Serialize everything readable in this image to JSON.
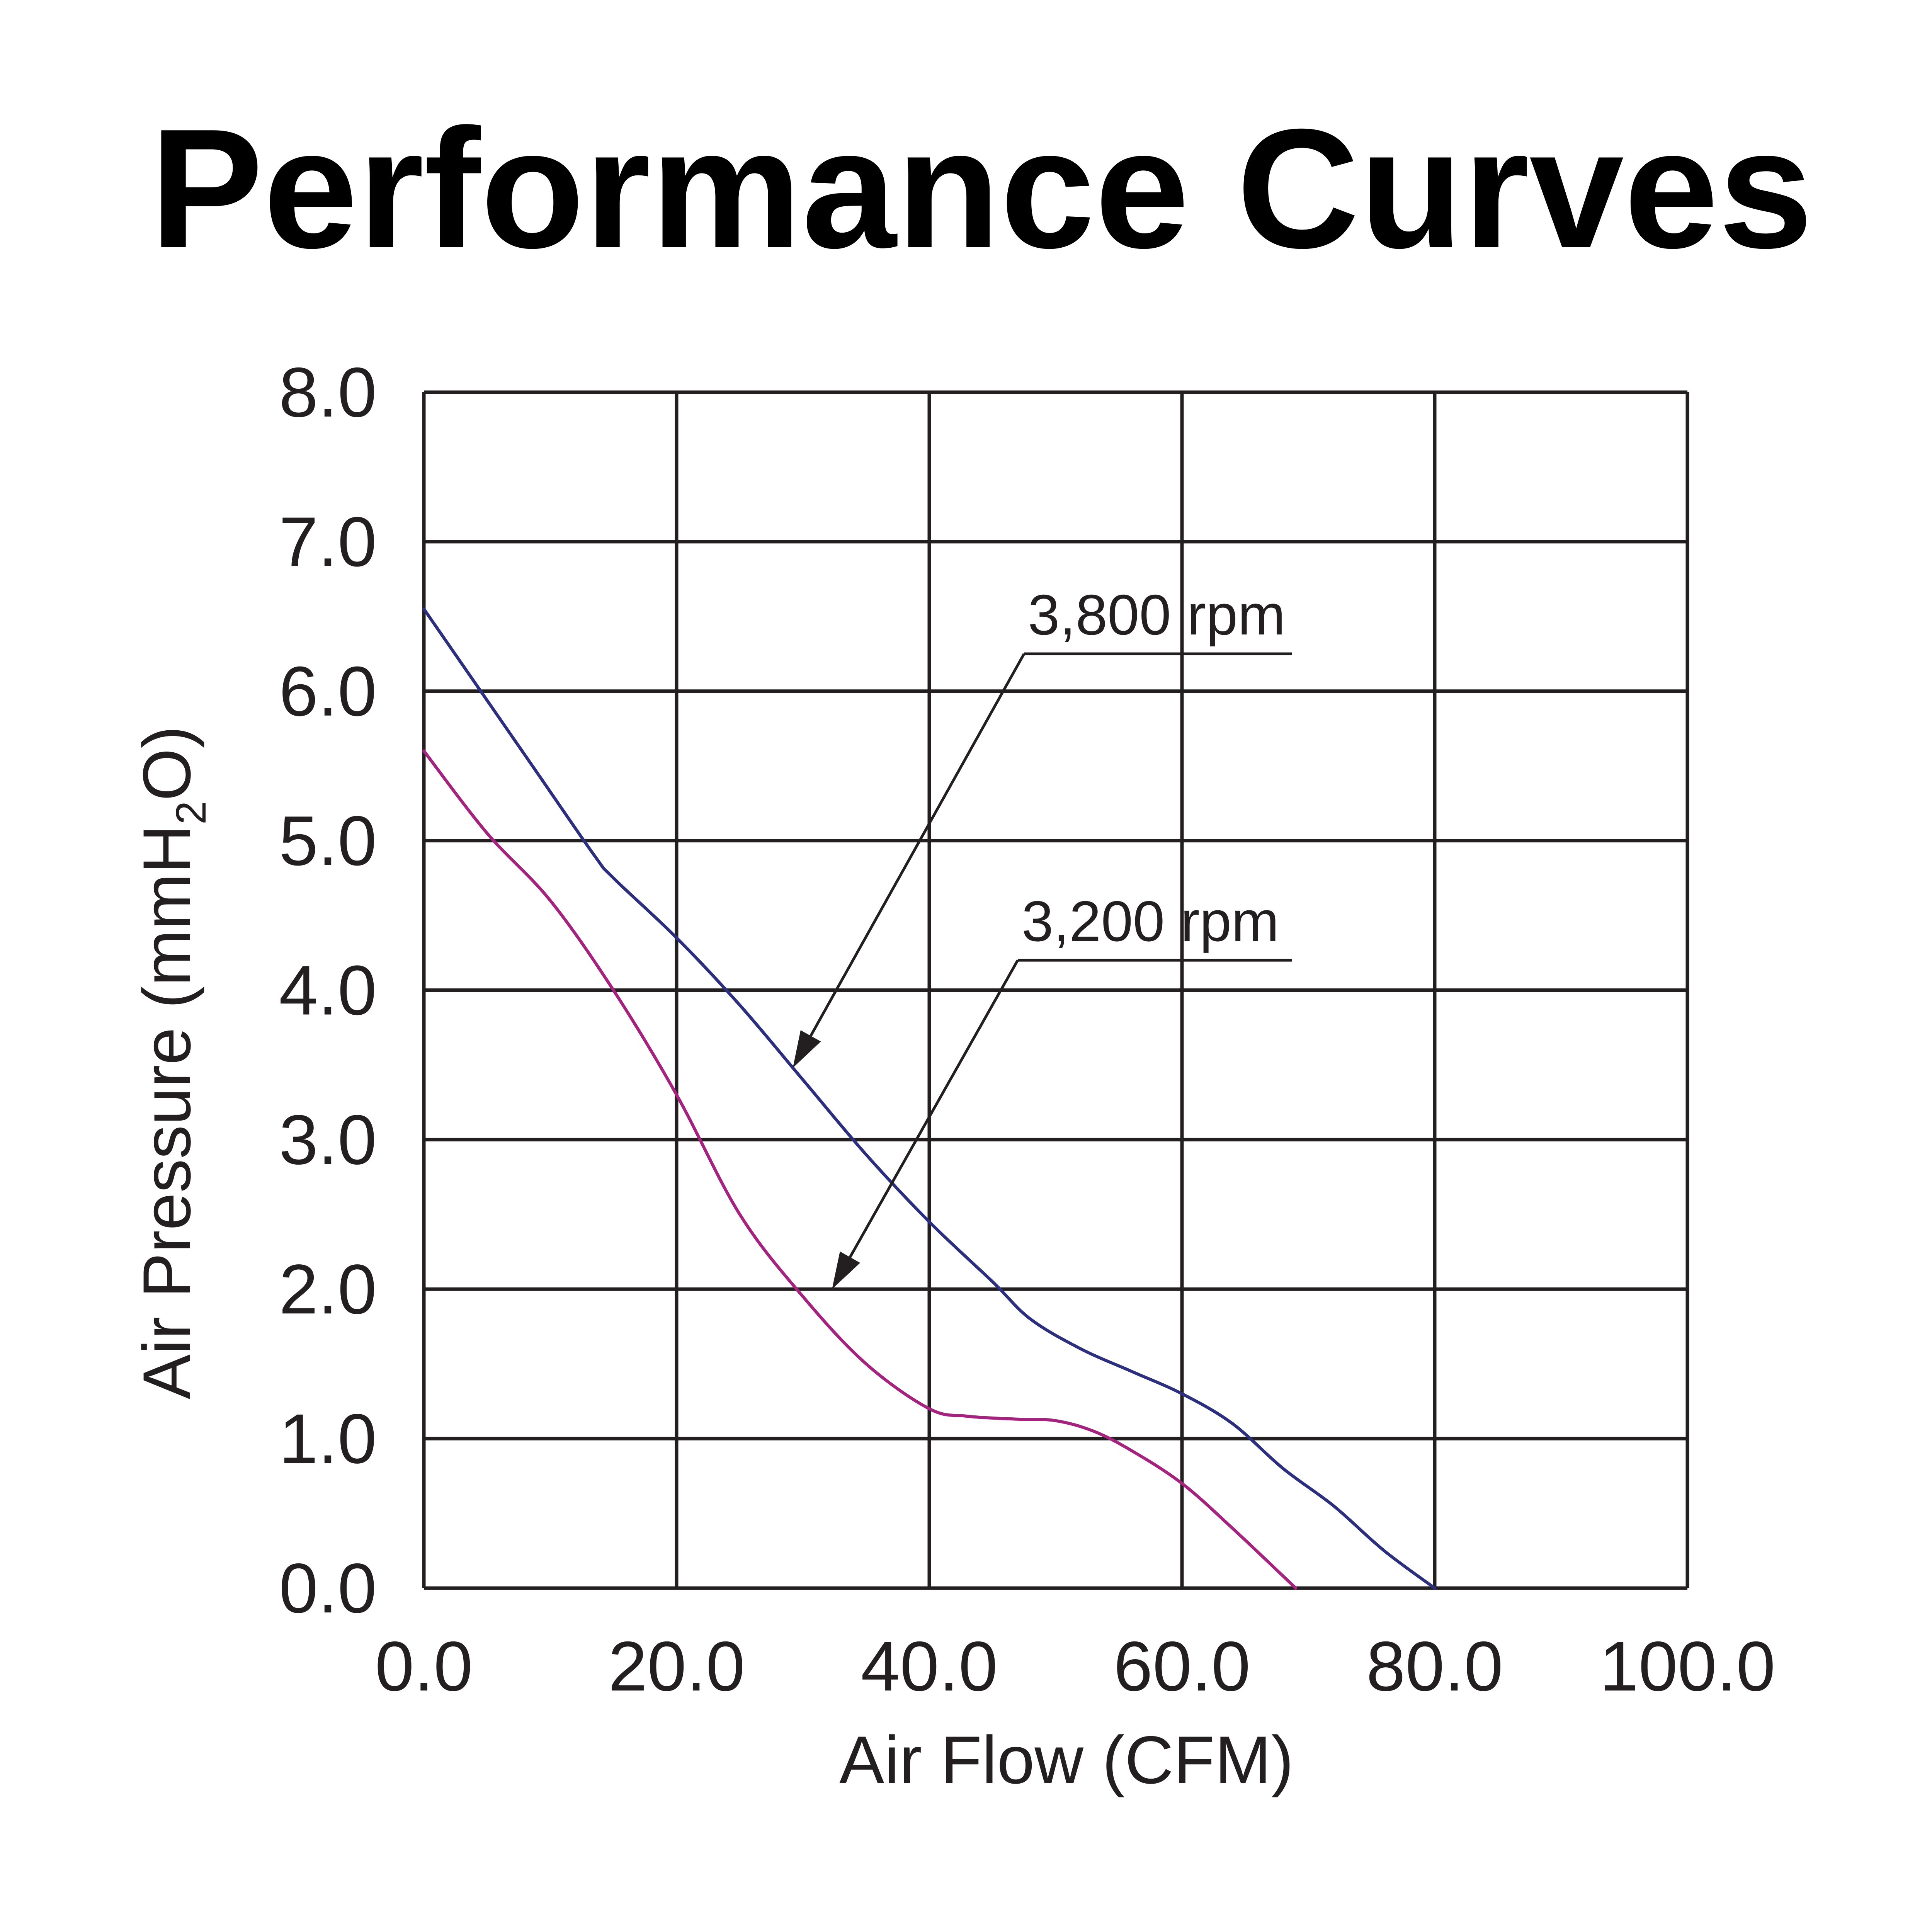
{
  "chart_data": {
    "type": "line",
    "title": "Performance Curves",
    "xlabel": "Air Flow (CFM)",
    "ylabel": {
      "prefix": "Air Pressure (mmH",
      "subscript": "2",
      "suffix": "O)"
    },
    "xlim": [
      0,
      100
    ],
    "ylim": [
      0,
      8
    ],
    "grid": true,
    "x_ticks": [
      0,
      20,
      40,
      60,
      80,
      100
    ],
    "x_tick_labels": [
      "0.0",
      "20.0",
      "40.0",
      "60.0",
      "80.0",
      "100.0"
    ],
    "y_ticks": [
      0,
      1,
      2,
      3,
      4,
      5,
      6,
      7,
      8
    ],
    "y_tick_labels": [
      "0.0",
      "1.0",
      "2.0",
      "3.0",
      "4.0",
      "5.0",
      "6.0",
      "7.0",
      "8.0"
    ],
    "series": [
      {
        "name": "3,800 rpm",
        "color": "#2b2f7e",
        "x": [
          0,
          4.5,
          9,
          13.5,
          15,
          20,
          25,
          30,
          35,
          40,
          45,
          48,
          52,
          56,
          60,
          64,
          68,
          72,
          76,
          80
        ],
        "y": [
          6.55,
          6.0,
          5.45,
          4.9,
          4.75,
          4.35,
          3.9,
          3.4,
          2.9,
          2.45,
          2.05,
          1.8,
          1.6,
          1.45,
          1.3,
          1.1,
          0.8,
          0.55,
          0.25,
          0.0
        ]
      },
      {
        "name": "3,200 rpm",
        "color": "#a3237f",
        "x": [
          0,
          5,
          10,
          15,
          20,
          25,
          30,
          35,
          40,
          43,
          47,
          50,
          53,
          56,
          60,
          64,
          69
        ],
        "y": [
          5.6,
          5.05,
          4.6,
          4.0,
          3.3,
          2.5,
          1.95,
          1.5,
          1.2,
          1.15,
          1.13,
          1.12,
          1.05,
          0.92,
          0.7,
          0.4,
          0.0
        ]
      }
    ],
    "annotations": [
      {
        "text": "3,800 rpm",
        "series": "3,800 rpm",
        "label_anchor": [
          47.5,
          6.25
        ],
        "underline_end": [
          68.7,
          6.25
        ],
        "arrow_target": [
          29.2,
          3.48
        ]
      },
      {
        "text": "3,200 rpm",
        "series": "3,200 rpm",
        "label_anchor": [
          47,
          4.2
        ],
        "underline_end": [
          68.7,
          4.2
        ],
        "arrow_target": [
          32.3,
          2.0
        ]
      }
    ],
    "colors": {
      "grid": "#231f20",
      "text": "#231f20",
      "title": "#000000",
      "annotation": "#231f20"
    }
  }
}
